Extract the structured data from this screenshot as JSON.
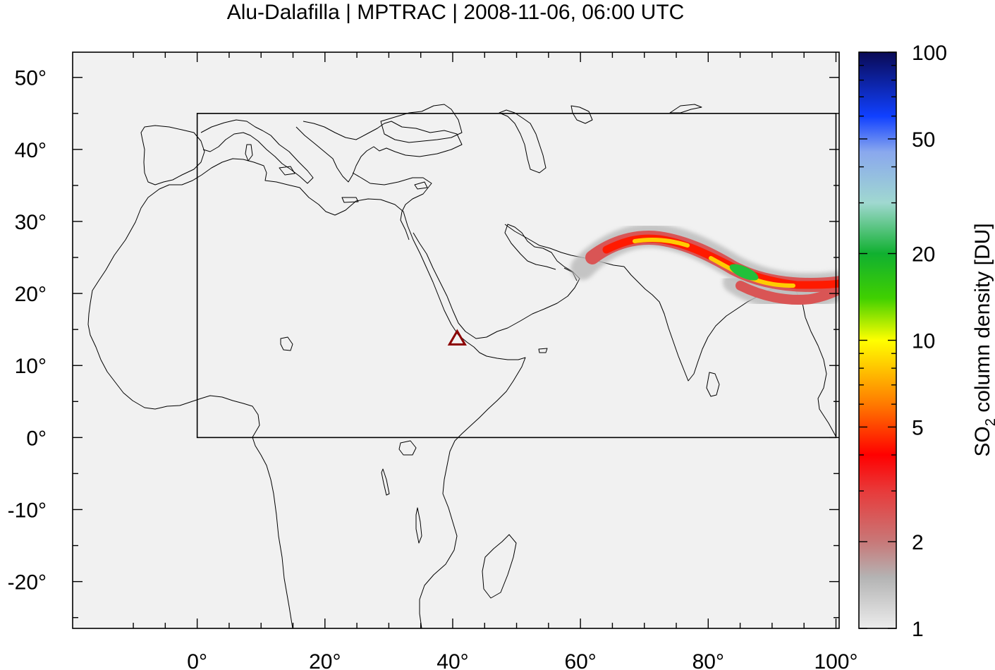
{
  "title": "Alu-Dalafilla | MPTRAC | 2008-11-06, 06:00 UTC",
  "map": {
    "xlim": [
      -19.5,
      100.5
    ],
    "ylim": [
      -26.5,
      53.5
    ],
    "background": "#f1f1f1",
    "x_ticks": [
      {
        "value": 0,
        "label": "0°"
      },
      {
        "value": 20,
        "label": "20°"
      },
      {
        "value": 40,
        "label": "40°"
      },
      {
        "value": 60,
        "label": "60°"
      },
      {
        "value": 80,
        "label": "80°"
      },
      {
        "value": 100,
        "label": "100°"
      }
    ],
    "y_ticks": [
      {
        "value": 50,
        "label": "50°"
      },
      {
        "value": 40,
        "label": "40°"
      },
      {
        "value": 30,
        "label": "30°"
      },
      {
        "value": 20,
        "label": "20°"
      },
      {
        "value": 10,
        "label": "10°"
      },
      {
        "value": 0,
        "label": "0°"
      },
      {
        "value": -10,
        "label": "-10°"
      },
      {
        "value": -20,
        "label": "-20°"
      }
    ],
    "domain_box": {
      "lon_min": 0,
      "lon_max": 100,
      "lat_min": 0,
      "lat_max": 45
    },
    "volcano": {
      "name_icon": "triangle-marker-icon",
      "lon": 40.7,
      "lat": 13.8,
      "color": "#8b0000"
    }
  },
  "colorbar": {
    "label": "SO2 column density [DU]",
    "label_main": "SO",
    "label_sub": "2",
    "label_rest": " column density [DU]",
    "scale": "log",
    "range": [
      1,
      100
    ],
    "ticks": [
      {
        "value": 100,
        "label": "100"
      },
      {
        "value": 50,
        "label": "50"
      },
      {
        "value": 20,
        "label": "20"
      },
      {
        "value": 10,
        "label": "10"
      },
      {
        "value": 5,
        "label": "5"
      },
      {
        "value": 2,
        "label": "2"
      },
      {
        "value": 1,
        "label": "1"
      }
    ],
    "stops": [
      {
        "value": 1,
        "color": "#ececec"
      },
      {
        "value": 1.5,
        "color": "#b4b4b4"
      },
      {
        "value": 2,
        "color": "#c87878"
      },
      {
        "value": 3,
        "color": "#e83a3a"
      },
      {
        "value": 4,
        "color": "#ff0000"
      },
      {
        "value": 6,
        "color": "#ff7a00"
      },
      {
        "value": 10,
        "color": "#ffff00"
      },
      {
        "value": 14,
        "color": "#40d000"
      },
      {
        "value": 20,
        "color": "#10b030"
      },
      {
        "value": 30,
        "color": "#a0d8d0"
      },
      {
        "value": 45,
        "color": "#8aa8ee"
      },
      {
        "value": 60,
        "color": "#1040ff"
      },
      {
        "value": 100,
        "color": "#0a0a55"
      }
    ]
  },
  "plume": {
    "outer_color": "#bdbdbd",
    "mid_color": "#d95555",
    "high_color": "#ff1a00",
    "core_color": "#ffcc00",
    "peak_color": "#22c03a"
  }
}
